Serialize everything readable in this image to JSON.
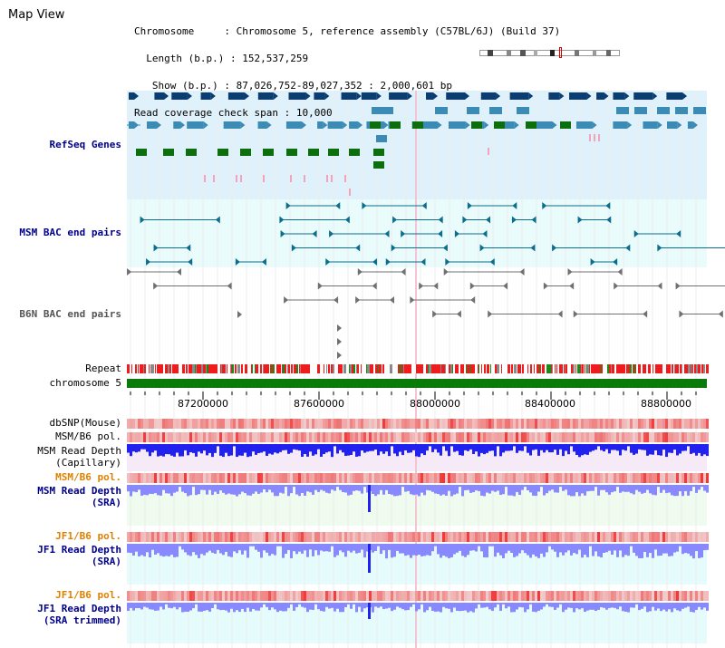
{
  "page": {
    "title": "Map View"
  },
  "info": {
    "chromosome_label": "Chromosome",
    "chromosome_value": "Chromosome 5, reference assembly (C57BL/6J) (Build 37)",
    "length_label": "Length (b.p.)",
    "length_value": "152,537,259",
    "show_label": "Show (b.p.)",
    "show_value": "87,026,752-89,027,352 : 2,000,601 bp",
    "coverage_label": "Read coverage check span",
    "coverage_value": "10,000"
  },
  "tracks": {
    "refseq": {
      "label": "RefSeq Genes"
    },
    "msm_bac": {
      "label": "MSM BAC end pairs"
    },
    "b6n_bac": {
      "label": "B6N BAC end pairs"
    },
    "repeat": {
      "label": "Repeat"
    },
    "chrom": {
      "label": "chromosome 5"
    },
    "axis": {
      "ticks": [
        "87200000",
        "87600000",
        "88000000",
        "88400000",
        "88800000"
      ]
    },
    "dbsnp": {
      "label": "dbSNP(Mouse)"
    },
    "msm_b6_pol_1": {
      "label": "MSM/B6 pol."
    },
    "msm_depth_cap": {
      "label1": "MSM Read Depth",
      "label2": "(Capillary)"
    },
    "msm_b6_pol_2": {
      "label": "MSM/B6 pol."
    },
    "msm_depth_sra": {
      "label1": "MSM Read Depth",
      "label2": "(SRA)"
    },
    "jf1_b6_pol_1": {
      "label": "JF1/B6 pol."
    },
    "jf1_depth_sra": {
      "label1": "JF1 Read Depth",
      "label2": "(SRA)"
    },
    "jf1_b6_pol_2": {
      "label": "JF1/B6 pol."
    },
    "jf1_depth_trim": {
      "label1": "JF1 Read Depth",
      "label2": "(SRA trimmed)"
    }
  },
  "colors": {
    "refseq_bg": "#dff1fb",
    "bac_bg": "#e9fbfb",
    "gene_dark": "#0b3d70",
    "gene_mid": "#3b8bb5",
    "gene_green": "#0c6e0c",
    "gene_pink": "#f4a3bd",
    "msm_bac": "#0b6e8c",
    "b6n_bac": "#707070",
    "repeat_red": "#ee1c1c",
    "chrom_green": "#0a7a0a",
    "label_blue": "#00008b",
    "label_orange": "#e08000",
    "depth_blue": "#2222ee",
    "depth_light": "#8888ff",
    "lavender_bg": "#f7eaf8",
    "mint_bg": "#eefbee",
    "cyan_bg": "#e6fbfb"
  }
}
